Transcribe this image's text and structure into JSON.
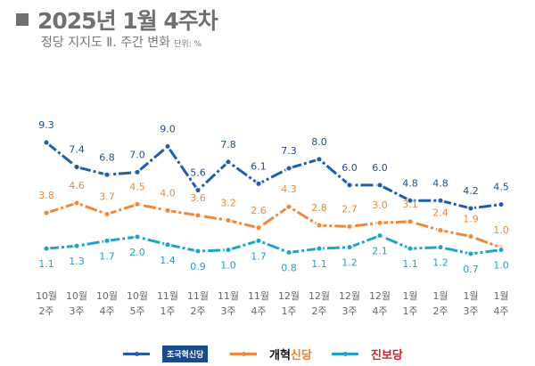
{
  "header": {
    "title": "2025년 1월 4주차",
    "subtitle": "정당 지지도 Ⅱ. 주간 변화",
    "unit": "단위: %"
  },
  "chart_data": {
    "type": "line",
    "categories": [
      [
        "10월",
        "2주"
      ],
      [
        "10월",
        "3주"
      ],
      [
        "10월",
        "4주"
      ],
      [
        "10월",
        "5주"
      ],
      [
        "11월",
        "1주"
      ],
      [
        "11월",
        "2주"
      ],
      [
        "11월",
        "3주"
      ],
      [
        "11월",
        "4주"
      ],
      [
        "12월",
        "1주"
      ],
      [
        "12월",
        "2주"
      ],
      [
        "12월",
        "3주"
      ],
      [
        "12월",
        "4주"
      ],
      [
        "1월",
        "1주"
      ],
      [
        "1월",
        "2주"
      ],
      [
        "1월",
        "3주"
      ],
      [
        "1월",
        "4주"
      ]
    ],
    "series": [
      {
        "name": "조국혁신당",
        "color": "#1f5ea8",
        "values": [
          9.3,
          7.4,
          6.8,
          7.0,
          9.0,
          5.6,
          7.8,
          6.1,
          7.3,
          8.0,
          6.0,
          6.0,
          4.8,
          4.8,
          4.2,
          4.5
        ]
      },
      {
        "name": "개혁신당",
        "color": "#f0883a",
        "values": [
          3.8,
          4.6,
          3.7,
          4.5,
          4.0,
          3.6,
          3.2,
          2.6,
          4.3,
          2.8,
          2.7,
          3.0,
          3.1,
          2.4,
          1.9,
          1.0
        ]
      },
      {
        "name": "진보당",
        "color": "#1fa3c8",
        "values": [
          1.1,
          1.3,
          1.7,
          2.0,
          1.4,
          0.9,
          1.0,
          1.7,
          0.8,
          1.1,
          1.2,
          2.1,
          1.1,
          1.2,
          0.7,
          1.0
        ]
      }
    ],
    "legend": "bottom",
    "grid": false
  },
  "legend": {
    "s1": "조국혁신당",
    "s2a": "개혁",
    "s2b": "신당",
    "s3": "진보당"
  }
}
